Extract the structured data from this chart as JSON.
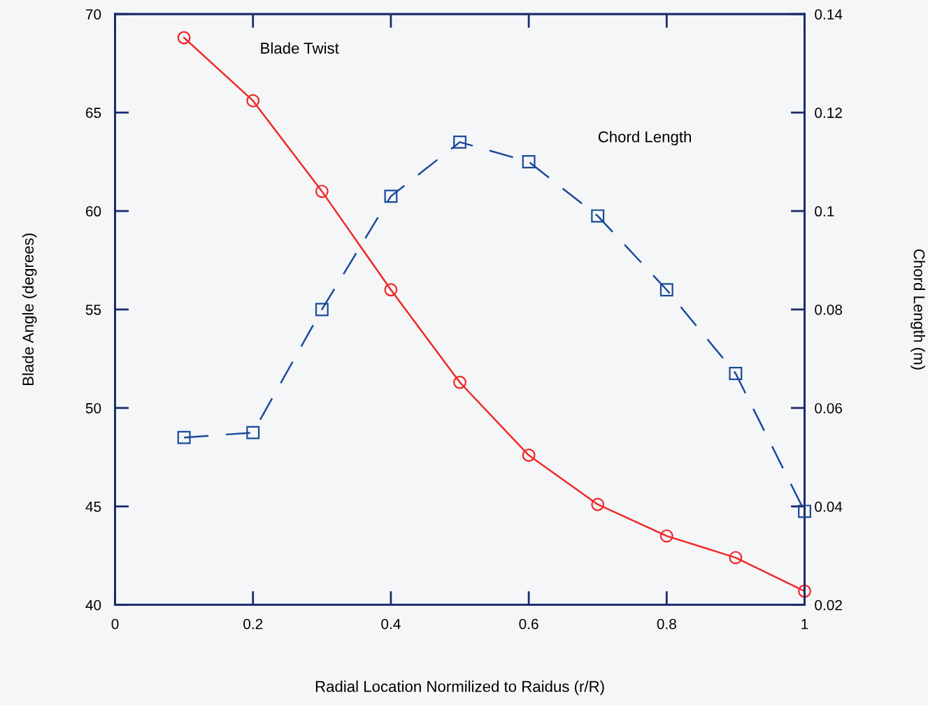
{
  "chart_data": {
    "type": "line",
    "xlabel": "Radial Location Normilized to Raidus (r/R)",
    "ylabel": "Blade Angle (degrees)",
    "y2label": "Chord Length (m)",
    "x": [
      0.1,
      0.2,
      0.3,
      0.4,
      0.5,
      0.6,
      0.7,
      0.8,
      0.9,
      1.0
    ],
    "series": [
      {
        "color": "#f02828",
        "marker": "circle",
        "line_style": "solid",
        "values": [
          68.8,
          65.6,
          61.0,
          56.0,
          51.3,
          47.6,
          45.1,
          43.5,
          42.4,
          40.7
        ]
      },
      {
        "color": "#1a4a9a",
        "marker": "square",
        "line_style": "dashed",
        "axis": "y2",
        "values": [
          0.054,
          0.055,
          0.08,
          0.103,
          0.114,
          0.11,
          0.099,
          0.084,
          0.067,
          0.039
        ]
      }
    ],
    "xlim": [
      0,
      1
    ],
    "xticks": [
      0,
      0.2,
      0.4,
      0.6,
      0.8,
      1
    ],
    "ylim": [
      40,
      70
    ],
    "yticks": [
      40,
      45,
      50,
      55,
      60,
      65,
      70
    ],
    "y2lim": [
      0.02,
      0.14
    ],
    "y2ticks": [
      0.02,
      0.04,
      0.06,
      0.08,
      0.1,
      0.12,
      0.14
    ],
    "annotations": [
      "Blade Twist",
      "Chord Length"
    ],
    "grid": false
  }
}
